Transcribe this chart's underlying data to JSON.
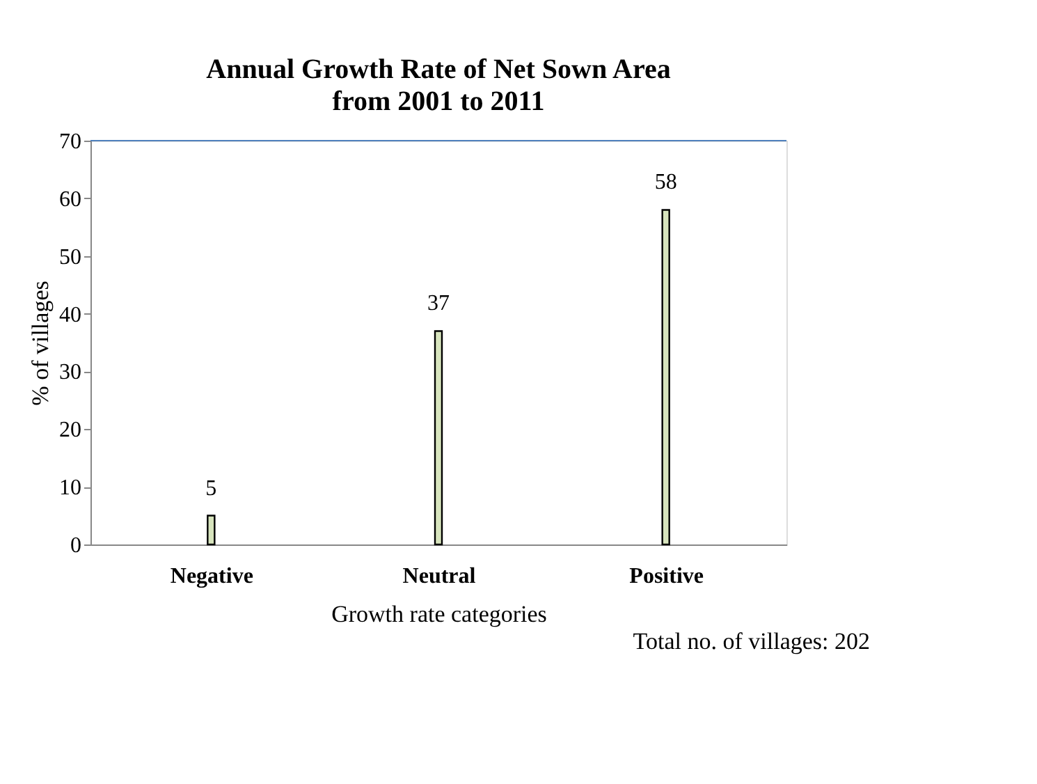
{
  "chart_data": {
    "type": "bar",
    "title": "Annual Growth Rate of Net Sown Area",
    "subtitle": "from 2001 to 2011",
    "xlabel": "Growth rate categories",
    "ylabel": "% of villages",
    "categories": [
      "Negative",
      "Neutral",
      "Positive"
    ],
    "values": [
      5,
      37,
      58
    ],
    "color": "#d7e4bd",
    "ylim": [
      0,
      70
    ],
    "yticks": [
      0,
      10,
      20,
      30,
      40,
      50,
      60,
      70
    ],
    "grid": false,
    "data_labels": true,
    "annotations": [
      "Total no. of villages: 202"
    ]
  }
}
